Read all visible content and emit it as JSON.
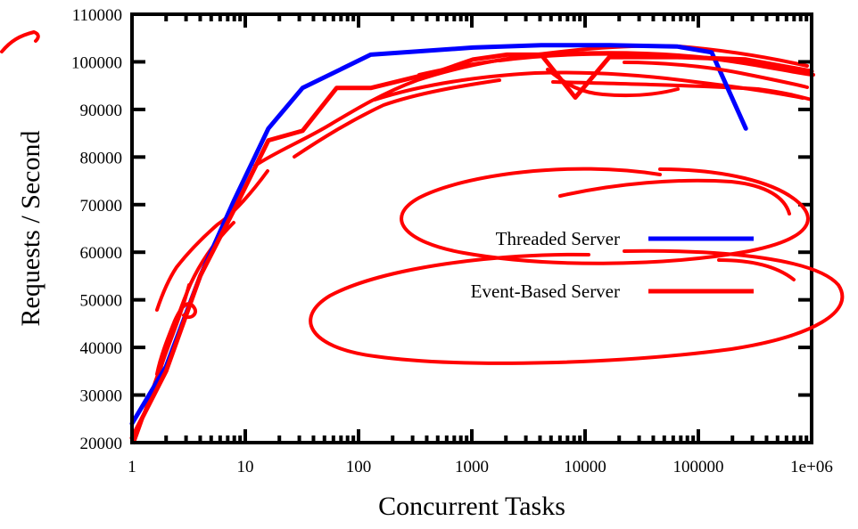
{
  "chart_data": {
    "type": "line",
    "title": "",
    "xlabel": "Concurrent Tasks",
    "ylabel": "Requests / Second",
    "xscale": "log",
    "xlim": [
      1,
      1000000
    ],
    "ylim": [
      20000,
      110000
    ],
    "grid": false,
    "legend_position": "center-right",
    "x_tick_labels": [
      "1",
      "10",
      "100",
      "1000",
      "10000",
      "100000",
      "1e+06"
    ],
    "y_tick_labels": [
      "20000",
      "30000",
      "40000",
      "50000",
      "60000",
      "70000",
      "80000",
      "90000",
      "100000",
      "110000"
    ],
    "series": [
      {
        "name": "Threaded Server",
        "color": "#0000ff",
        "x": [
          1,
          2,
          4,
          8,
          16,
          32,
          128,
          1024,
          4096,
          16384,
          65536,
          131072,
          262144
        ],
        "y": [
          24000,
          36000,
          55000,
          71000,
          86000,
          94500,
          101500,
          103000,
          103500,
          103500,
          103200,
          102000,
          86000
        ]
      },
      {
        "name": "Event-Based Server",
        "color": "#ff0000",
        "x": [
          1,
          2,
          4,
          8,
          16,
          32,
          64,
          128,
          512,
          1024,
          2048,
          4096,
          8192,
          16384,
          65536,
          262144,
          1000000
        ],
        "y": [
          21000,
          35000,
          55000,
          69000,
          83500,
          85500,
          94500,
          94500,
          98000,
          100500,
          101500,
          101500,
          92500,
          101000,
          101000,
          100500,
          98000
        ]
      }
    ]
  },
  "annotations": {
    "ink_color": "#ff0000"
  }
}
